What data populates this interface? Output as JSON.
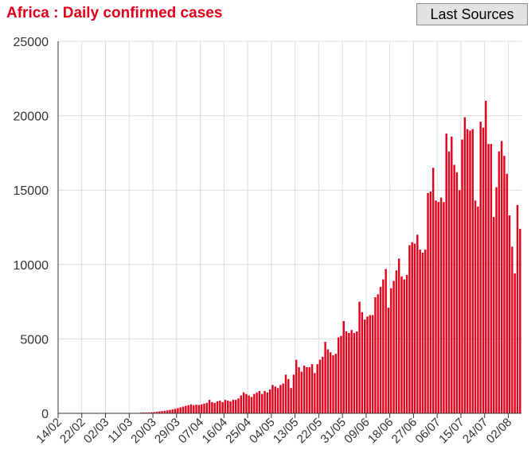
{
  "header": {
    "title": "Africa : Daily confirmed cases",
    "sources_button": "Last Sources"
  },
  "chart_data": {
    "type": "bar",
    "title": "Africa : Daily confirmed cases",
    "color": "#e0001b",
    "grid": true,
    "ylim": [
      0,
      25000
    ],
    "y_ticks": [
      0,
      5000,
      10000,
      15000,
      20000,
      25000
    ],
    "y_tick_labels": [
      "0",
      "5000",
      "10000",
      "15000",
      "20000",
      "25000"
    ],
    "x_tick_labels": [
      "14/02",
      "22/02",
      "02/03",
      "11/03",
      "20/03",
      "29/03",
      "07/04",
      "16/04",
      "25/04",
      "04/05",
      "13/05",
      "22/05",
      "31/05",
      "09/06",
      "18/06",
      "27/06",
      "06/07",
      "15/07",
      "24/07",
      "02/08"
    ],
    "x_tick_every": 9,
    "values": [
      0,
      0,
      0,
      0,
      0,
      0,
      0,
      0,
      0,
      0,
      0,
      0,
      0,
      0,
      0,
      0,
      0,
      0,
      0,
      0,
      10,
      0,
      0,
      0,
      10,
      0,
      10,
      10,
      20,
      30,
      30,
      50,
      50,
      50,
      60,
      70,
      80,
      110,
      130,
      150,
      170,
      200,
      230,
      260,
      300,
      350,
      400,
      450,
      500,
      550,
      600,
      550,
      580,
      560,
      600,
      650,
      700,
      900,
      750,
      700,
      800,
      850,
      750,
      900,
      850,
      800,
      900,
      900,
      1000,
      1200,
      1400,
      1300,
      1200,
      1100,
      1300,
      1400,
      1500,
      1300,
      1500,
      1400,
      1600,
      1900,
      1800,
      1700,
      1900,
      2000,
      2600,
      2300,
      1700,
      2600,
      3600,
      3100,
      2800,
      3200,
      3100,
      3100,
      3300,
      2700,
      3300,
      3600,
      3800,
      4800,
      4300,
      4100,
      3900,
      4000,
      5100,
      5200,
      6200,
      5500,
      5400,
      5600,
      5400,
      5500,
      7500,
      6800,
      6300,
      6500,
      6600,
      6600,
      7800,
      8000,
      8500,
      9000,
      9700,
      7100,
      8400,
      8900,
      9600,
      10400,
      9200,
      9000,
      9300,
      11300,
      11500,
      11400,
      12000,
      11000,
      10800,
      11000,
      14800,
      14900,
      16500,
      14300,
      14200,
      14500,
      14200,
      18800,
      17600,
      18600,
      16700,
      16200,
      15000,
      18400,
      19900,
      19100,
      19000,
      19100,
      14300,
      13900,
      19600,
      19200,
      21000,
      18100,
      18100,
      13200,
      15200,
      17600,
      18300,
      17300,
      16100,
      13300,
      11200,
      9400,
      14000,
      12400
    ]
  }
}
